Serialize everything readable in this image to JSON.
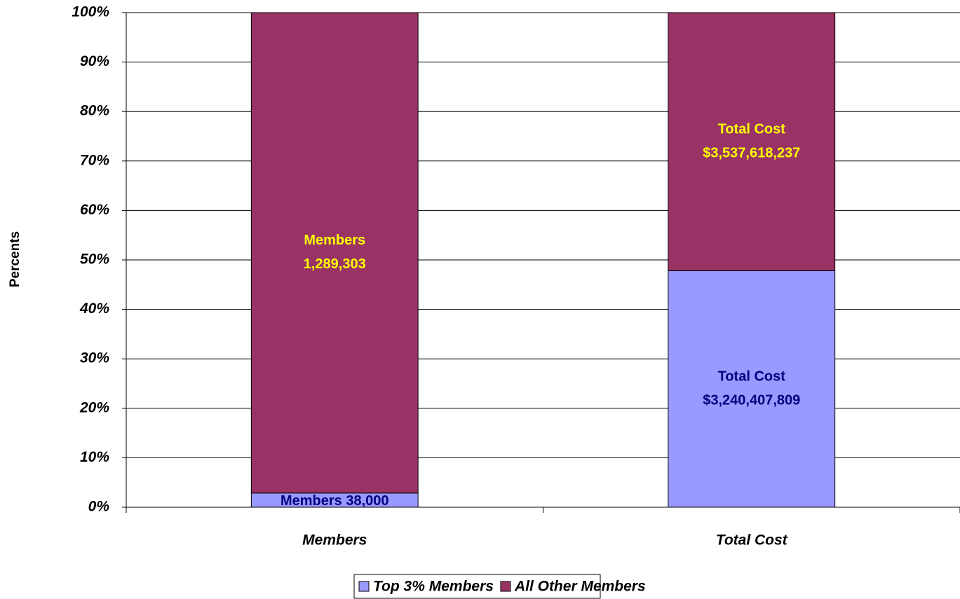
{
  "chart_data": {
    "type": "bar",
    "stacking": "percent",
    "y_label": "Percents",
    "categories": [
      "Members",
      "Total Cost"
    ],
    "series": [
      {
        "name": "Top 3% Members",
        "color": "#9999ff",
        "label_color": "#000080",
        "values": [
          38000,
          3240407809
        ],
        "value_labels": [
          "38,000",
          "$3,240,407,809"
        ]
      },
      {
        "name": "All Other Members",
        "color": "#993366",
        "label_color": "#ffff00",
        "values": [
          1289303,
          3537618237
        ],
        "value_labels": [
          "1,289,303",
          "$3,537,618,237"
        ]
      }
    ],
    "ylim": [
      0,
      100
    ],
    "yticks": [
      {
        "value": 0,
        "label": "0%"
      },
      {
        "value": 10,
        "label": "10%"
      },
      {
        "value": 20,
        "label": "20%"
      },
      {
        "value": 30,
        "label": "30%"
      },
      {
        "value": 40,
        "label": "40%"
      },
      {
        "value": 50,
        "label": "50%"
      },
      {
        "value": 60,
        "label": "60%"
      },
      {
        "value": 70,
        "label": "70%"
      },
      {
        "value": 80,
        "label": "80%"
      },
      {
        "value": 90,
        "label": "90%"
      },
      {
        "value": 100,
        "label": "100%"
      }
    ],
    "grid": true,
    "legend": "bottom"
  }
}
